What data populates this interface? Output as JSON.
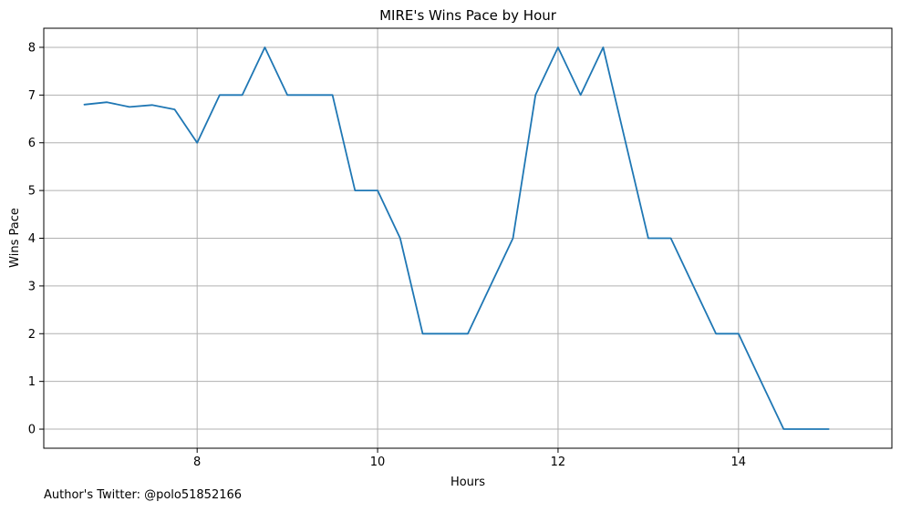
{
  "chart_data": {
    "type": "line",
    "title": "MIRE's Wins Pace by Hour",
    "xlabel": "Hours",
    "ylabel": "Wins Pace",
    "xlim": [
      6.3,
      15.7
    ],
    "ylim": [
      -0.4,
      8.4
    ],
    "xticks": [
      8,
      10,
      12,
      14
    ],
    "yticks": [
      0,
      1,
      2,
      3,
      4,
      5,
      6,
      7,
      8
    ],
    "grid": true,
    "colors": {
      "line": "#1f77b4",
      "grid": "#b0b0b0"
    },
    "series": [
      {
        "x": [
          6.75,
          7.0,
          7.25,
          7.5,
          7.75,
          8.0,
          8.25,
          8.5,
          8.75,
          9.0,
          9.25,
          9.5,
          9.75,
          10.0,
          10.25,
          10.5,
          10.75,
          11.0,
          11.25,
          11.5,
          11.75,
          12.0,
          12.25,
          12.5,
          12.75,
          13.0,
          13.25,
          13.5,
          13.75,
          14.0,
          14.25,
          14.5,
          14.75,
          15.0
        ],
        "y": [
          6.8,
          6.85,
          6.75,
          6.79,
          6.7,
          6.0,
          7.0,
          7.0,
          8.0,
          7.0,
          7.0,
          7.0,
          5.0,
          5.0,
          4.0,
          2.0,
          2.0,
          2.0,
          3.0,
          4.0,
          7.0,
          8.0,
          7.0,
          8.0,
          6.0,
          4.0,
          4.0,
          3.0,
          2.0,
          2.0,
          1.0,
          0.0,
          0.0,
          0.0
        ]
      }
    ]
  },
  "footer": {
    "credit": "Author's Twitter: @polo51852166"
  }
}
